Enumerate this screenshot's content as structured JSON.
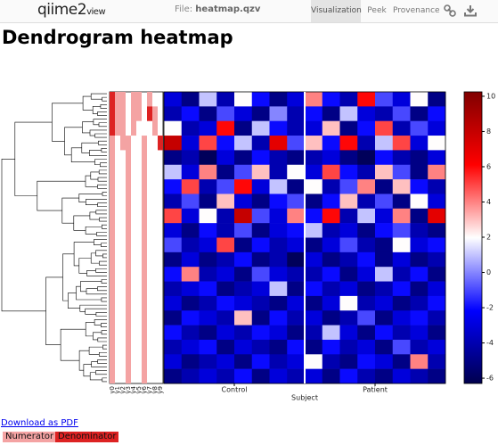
{
  "header": {
    "logo_main": "qiime",
    "logo_num": "2",
    "logo_sub": "view",
    "file_label": "File:",
    "file_name": "heatmap.qzv",
    "tabs": [
      "Visualization",
      "Peek",
      "Provenance"
    ]
  },
  "title": "Dendrogram heatmap",
  "heatmap": {
    "colorbar_lim": [
      -6.3,
      10.25
    ],
    "colorbar_ticks": [
      -6,
      -4,
      -2,
      0,
      2,
      4,
      6,
      8,
      10
    ],
    "xlabel": "Subject",
    "groups": [
      {
        "label": "Control",
        "start": 0,
        "end": 7
      },
      {
        "label": "Patient",
        "start": 8,
        "end": 15
      }
    ],
    "values": [
      [
        -3,
        -5,
        1,
        -4,
        2,
        -2,
        -5,
        -3,
        4,
        -2,
        -4,
        6,
        -1,
        -3,
        2,
        -5
      ],
      [
        -4,
        -2,
        -5,
        -1,
        -3,
        -5,
        0,
        -4,
        -2,
        -5,
        1,
        -3,
        -4,
        -1,
        -5,
        -2
      ],
      [
        2,
        -4,
        -3,
        6,
        -5,
        1,
        -2,
        -4,
        -3,
        3,
        -5,
        -2,
        5,
        -4,
        -1,
        -3
      ],
      [
        8,
        -3,
        5,
        -2,
        1,
        -4,
        7,
        -1,
        3,
        -2,
        6,
        -4,
        1,
        5,
        -3,
        2
      ],
      [
        -5,
        -4,
        -6,
        -3,
        -5,
        -2,
        -4,
        -5,
        -4,
        -3,
        -5,
        -6,
        -2,
        -4,
        -5,
        -3
      ],
      [
        1,
        -3,
        4,
        -5,
        -1,
        3,
        -4,
        2,
        -3,
        5,
        -2,
        -4,
        3,
        -1,
        -5,
        4
      ],
      [
        -2,
        5,
        -4,
        -1,
        6,
        -3,
        1,
        -5,
        2,
        -4,
        -1,
        4,
        -5,
        3,
        -2,
        -4
      ],
      [
        -4,
        -1,
        -5,
        3,
        -3,
        -5,
        -2,
        -1,
        -5,
        -2,
        3,
        -4,
        -1,
        -5,
        2,
        -3
      ],
      [
        5,
        -3,
        2,
        -4,
        8,
        -1,
        -3,
        4,
        -2,
        6,
        -4,
        1,
        -3,
        4,
        -5,
        7
      ],
      [
        -3,
        -5,
        -2,
        -4,
        -1,
        -5,
        -3,
        -2,
        1,
        -4,
        -3,
        -5,
        -2,
        -1,
        -4,
        -5
      ],
      [
        -1,
        -4,
        -3,
        5,
        -5,
        -2,
        -4,
        -3,
        -5,
        -3,
        -1,
        -4,
        -5,
        2,
        -3,
        -2
      ],
      [
        -5,
        -3,
        -5,
        -4,
        -2,
        -5,
        -4,
        -6,
        -3,
        -5,
        -4,
        -2,
        -5,
        -3,
        -5,
        -4
      ],
      [
        -2,
        4,
        -4,
        -3,
        -5,
        -1,
        -3,
        -4,
        -4,
        -2,
        -5,
        -3,
        1,
        -4,
        -2,
        -5
      ],
      [
        -4,
        -3,
        -2,
        -5,
        -4,
        -3,
        1,
        -5,
        -2,
        -4,
        -3,
        -5,
        -4,
        -2,
        -5,
        -3
      ],
      [
        -3,
        -5,
        -4,
        -2,
        -3,
        -4,
        -5,
        -3,
        -5,
        -3,
        2,
        -4,
        -3,
        -5,
        -4,
        -2
      ],
      [
        -5,
        -2,
        -3,
        -4,
        3,
        -5,
        -2,
        -4,
        -3,
        -5,
        -4,
        -1,
        -5,
        -3,
        -2,
        -4
      ],
      [
        -2,
        -4,
        -5,
        -3,
        -4,
        -2,
        -3,
        -5,
        -4,
        1,
        -3,
        -5,
        -2,
        -4,
        -3,
        -5
      ],
      [
        -4,
        -3,
        -2,
        -5,
        -3,
        -4,
        -5,
        -2,
        -5,
        -2,
        -4,
        -3,
        -5,
        -1,
        -4,
        -3
      ],
      [
        -3,
        -5,
        -4,
        -3,
        -5,
        -2,
        -4,
        -3,
        2,
        -4,
        -5,
        -2,
        -3,
        -5,
        4,
        -4
      ],
      [
        -5,
        -4,
        -3,
        -4,
        -2,
        -5,
        -3,
        -4,
        -3,
        -5,
        -2,
        -4,
        -5,
        -3,
        -4,
        -5
      ]
    ]
  },
  "balances": {
    "labels": [
      "y0",
      "y1",
      "y2",
      "y3",
      "y4",
      "y5",
      "y6",
      "y7",
      "y8",
      "y9"
    ],
    "segments": [
      [
        {
          "rows": [
            0,
            2
          ],
          "legend": 1
        },
        {
          "rows": [
            3,
            19
          ],
          "legend": 0
        }
      ],
      [
        {
          "rows": [
            0,
            2
          ],
          "legend": 0
        }
      ],
      [
        {
          "rows": [
            0,
            3
          ],
          "legend": 0
        }
      ],
      [
        {
          "rows": [
            3,
            19
          ],
          "legend": 0
        }
      ],
      [
        {
          "rows": [
            0,
            2
          ],
          "legend": 0
        }
      ],
      [
        {
          "rows": [
            0,
            1
          ],
          "legend": 0
        }
      ],
      [
        {
          "rows": [
            3,
            19
          ],
          "legend": 0
        }
      ],
      [
        {
          "rows": [
            0,
            0
          ],
          "legend": 0
        },
        {
          "rows": [
            1,
            1
          ],
          "legend": 1
        }
      ],
      [
        {
          "rows": [
            1,
            2
          ],
          "legend": 0
        }
      ],
      [
        {
          "rows": [
            3,
            3
          ],
          "legend": 1
        }
      ]
    ]
  },
  "legend": [
    {
      "label": "Numerator",
      "color": "#f4a3a3"
    },
    {
      "label": "Denominator",
      "color": "#dd2222"
    }
  ],
  "download": "Download as PDF"
}
